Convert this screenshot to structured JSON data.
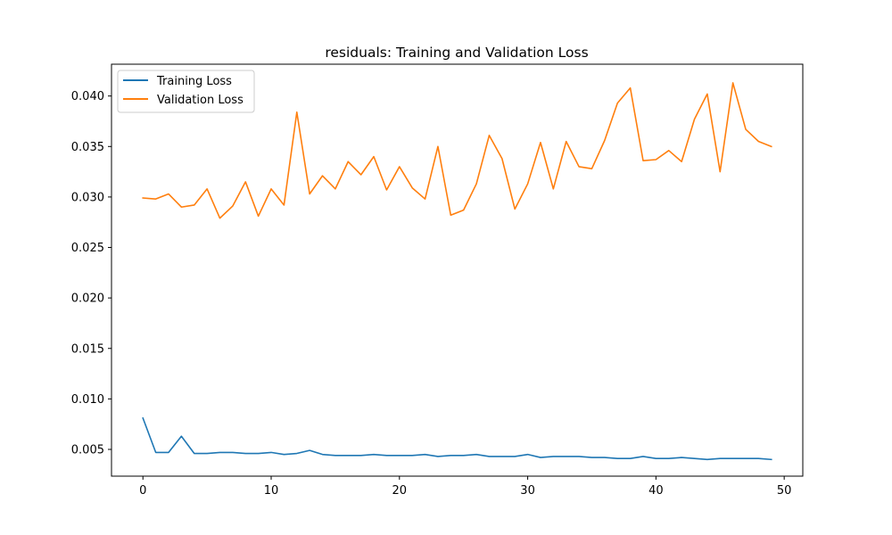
{
  "chart_data": {
    "type": "line",
    "title": "residuals: Training and Validation Loss",
    "xlabel": "",
    "ylabel": "",
    "xlim": [
      -2.45,
      51.45
    ],
    "ylim": [
      0.00235,
      0.04315
    ],
    "xticks": [
      0,
      10,
      20,
      30,
      40,
      50
    ],
    "yticks": [
      0.005,
      0.01,
      0.015,
      0.02,
      0.025,
      0.03,
      0.035,
      0.04
    ],
    "xtick_labels": [
      "0",
      "10",
      "20",
      "30",
      "40",
      "50"
    ],
    "ytick_labels": [
      "0.005",
      "0.010",
      "0.015",
      "0.020",
      "0.025",
      "0.030",
      "0.035",
      "0.040"
    ],
    "grid": false,
    "legend_position": "upper-left",
    "x": [
      0,
      1,
      2,
      3,
      4,
      5,
      6,
      7,
      8,
      9,
      10,
      11,
      12,
      13,
      14,
      15,
      16,
      17,
      18,
      19,
      20,
      21,
      22,
      23,
      24,
      25,
      26,
      27,
      28,
      29,
      30,
      31,
      32,
      33,
      34,
      35,
      36,
      37,
      38,
      39,
      40,
      41,
      42,
      43,
      44,
      45,
      46,
      47,
      48,
      49
    ],
    "series": [
      {
        "name": "Training Loss",
        "color": "#1f77b4",
        "values": [
          0.0081,
          0.0047,
          0.0047,
          0.0063,
          0.0046,
          0.0046,
          0.0047,
          0.0047,
          0.0046,
          0.0046,
          0.0047,
          0.0045,
          0.0046,
          0.0049,
          0.0045,
          0.0044,
          0.0044,
          0.0044,
          0.0045,
          0.0044,
          0.0044,
          0.0044,
          0.0045,
          0.0043,
          0.0044,
          0.0044,
          0.0045,
          0.0043,
          0.0043,
          0.0043,
          0.0045,
          0.0042,
          0.0043,
          0.0043,
          0.0043,
          0.0042,
          0.0042,
          0.0041,
          0.0041,
          0.0043,
          0.0041,
          0.0041,
          0.0042,
          0.0041,
          0.004,
          0.0041,
          0.0041,
          0.0041,
          0.0041,
          0.004
        ]
      },
      {
        "name": "Validation Loss",
        "color": "#ff7f0e",
        "values": [
          0.0299,
          0.0298,
          0.0303,
          0.029,
          0.0292,
          0.0308,
          0.0279,
          0.0291,
          0.0315,
          0.0281,
          0.0308,
          0.0292,
          0.0384,
          0.0303,
          0.0321,
          0.0308,
          0.0335,
          0.0322,
          0.034,
          0.0307,
          0.033,
          0.0309,
          0.0298,
          0.035,
          0.0282,
          0.0287,
          0.0313,
          0.0361,
          0.0338,
          0.0288,
          0.0313,
          0.0354,
          0.0308,
          0.0355,
          0.033,
          0.0328,
          0.0356,
          0.0393,
          0.0408,
          0.0336,
          0.0337,
          0.0346,
          0.0335,
          0.0377,
          0.0402,
          0.0325,
          0.0413,
          0.0367,
          0.0355,
          0.035
        ]
      }
    ]
  }
}
